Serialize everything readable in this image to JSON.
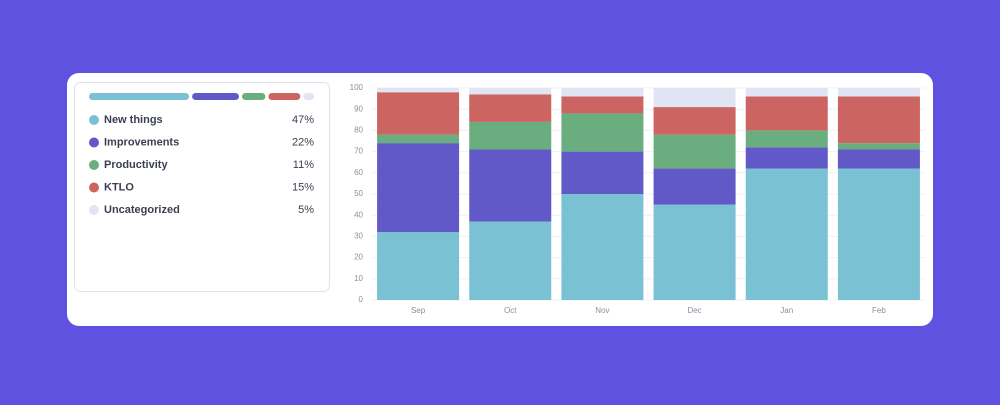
{
  "chart_data": {
    "type": "stacked-bar",
    "categories": [
      "Sep",
      "Oct",
      "Nov",
      "Dec",
      "Jan",
      "Feb"
    ],
    "series": [
      {
        "name": "New things",
        "color": "#7bc1d4",
        "values": [
          32,
          37,
          50,
          45,
          62,
          62
        ],
        "total": 47,
        "total_label": "47%"
      },
      {
        "name": "Improvements",
        "color": "#6159c7",
        "values": [
          42,
          34,
          20,
          17,
          10,
          9
        ],
        "total": 22,
        "total_label": "22%"
      },
      {
        "name": "Productivity",
        "color": "#6aae80",
        "values": [
          4,
          13,
          18,
          16,
          8,
          3
        ],
        "total": 11,
        "total_label": "11%"
      },
      {
        "name": "KTLO",
        "color": "#cc6461",
        "values": [
          20,
          13,
          8,
          13,
          16,
          22
        ],
        "total": 15,
        "total_label": "15%"
      },
      {
        "name": "Uncategorized",
        "color": "#e1e4f3",
        "values": [
          2,
          3,
          4,
          9,
          4,
          4
        ],
        "total": 5,
        "total_label": "5%"
      }
    ],
    "ylim": [
      0,
      100
    ],
    "yticks": [
      0,
      10,
      20,
      30,
      40,
      50,
      60,
      70,
      80,
      90,
      100
    ],
    "grid": true
  }
}
